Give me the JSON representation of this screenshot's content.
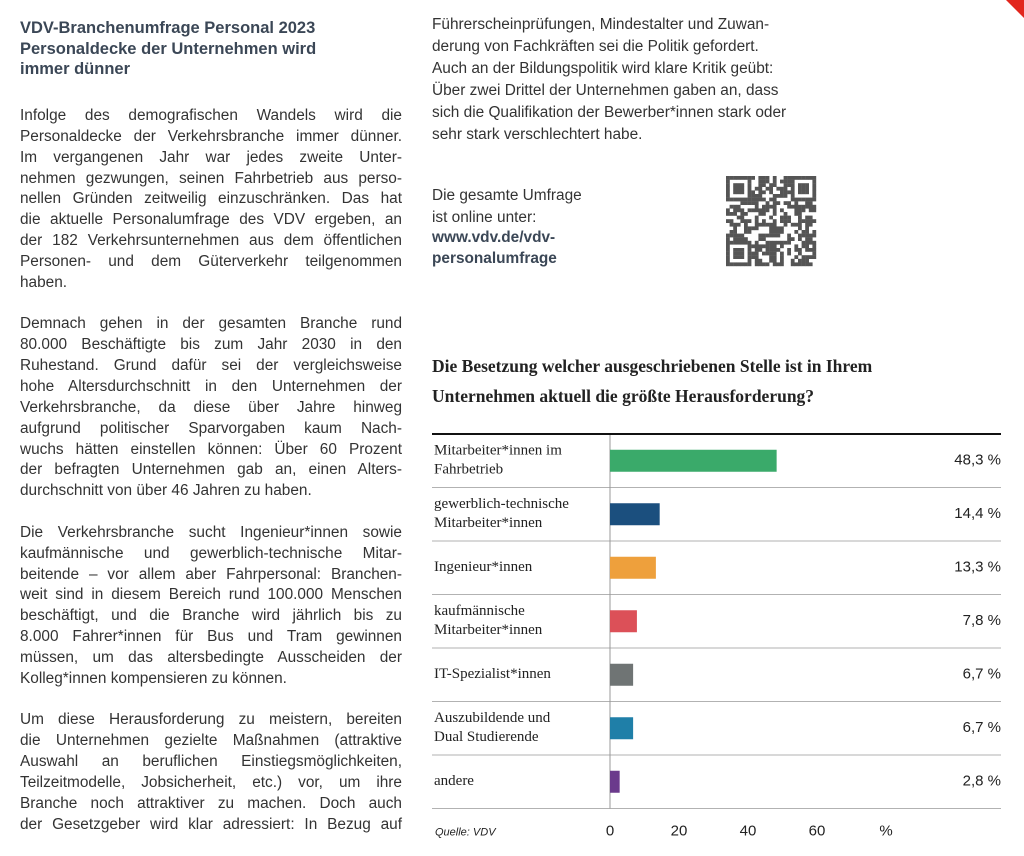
{
  "article": {
    "title": [
      "VDV-Branchenumfrage Personal 2023",
      "Personaldecke der Unternehmen wird",
      "immer dünner"
    ],
    "left_paragraphs": [
      [
        "Infolge des demografischen Wandels wird die",
        "Personaldecke der Verkehrsbranche immer dünner.",
        "Im vergangenen Jahr war jedes zweite Unter-",
        "nehmen gezwungen, seinen Fahrbetrieb aus perso-",
        "nellen Gründen zeitweilig einzuschränken. Das hat",
        "die aktuelle Personalumfrage des VDV ergeben, an",
        "der 182 Verkehrsunternehmen aus dem öffentlichen",
        "Personen- und dem Güterverkehr teilgenommen",
        "haben."
      ],
      [
        "Demnach gehen in der gesamten Branche rund",
        "80.000 Beschäftigte bis zum Jahr 2030 in den",
        "Ruhestand. Grund dafür sei der vergleichsweise",
        "hohe Altersdurchschnitt in den Unternehmen der",
        "Verkehrsbranche, da diese über Jahre hinweg",
        "aufgrund politischer Sparvorgaben kaum Nach-",
        "wuchs hätten einstellen können: Über 60 Prozent",
        "der befragten Unternehmen gab an, einen Alters-",
        "durchschnitt von über 46 Jahren zu haben."
      ],
      [
        "Die Verkehrsbranche sucht Ingenieur*innen sowie",
        "kaufmännische und gewerblich-technische Mitar-",
        "beitende – vor allem aber Fahrpersonal: Branchen-",
        "weit sind in diesem Bereich rund 100.000 Menschen",
        "beschäftigt, und die Branche wird jährlich bis zu",
        "8.000 Fahrer*innen für Bus und Tram gewinnen",
        "müssen, um das altersbedingte Ausscheiden der",
        "Kolleg*innen kompensieren zu können."
      ],
      [
        "Um diese Herausforderung zu meistern, bereiten",
        "die Unternehmen gezielte Maßnahmen (attraktive",
        "Auswahl an beruflichen Einstiegsmöglichkeiten,",
        "Teilzeitmodelle, Jobsicherheit, etc.) vor, um ihre",
        "Branche noch attraktiver zu machen. Doch auch",
        "der Gesetzgeber wird klar adressiert: In Bezug auf"
      ]
    ],
    "right_paragraph": [
      "Führerscheinprüfungen, Mindestalter und Zuwan-",
      "derung von Fachkräften sei die Politik gefordert.",
      "Auch an der Bildungspolitik wird klare Kritik geübt:",
      "Über zwei Drittel der Unternehmen gaben an, dass",
      "sich die Qualifikation der Bewerber*innen stark oder",
      "sehr stark verschlechtert habe."
    ],
    "online_note": [
      "Die gesamte Umfrage",
      "ist online unter:"
    ],
    "url": [
      "www.vdv.de/vdv-",
      "personalumfrage"
    ]
  },
  "chart_data": {
    "type": "hbar",
    "title": "Die Besetzung welcher ausgeschriebenen Stelle ist in Ihrem Unternehmen aktuell die größte Herausforderung?",
    "source": "Quelle: VDV",
    "categories": [
      [
        "Mitarbeiter*innen im",
        "Fahrbetrieb"
      ],
      [
        "gewerblich-technische",
        "Mitarbeiter*innen"
      ],
      [
        "Ingenieur*innen"
      ],
      [
        "kaufmännische",
        "Mitarbeiter*innen"
      ],
      [
        "IT-Spezialist*innen"
      ],
      [
        "Auszubildende und",
        "Dual Studierende"
      ],
      [
        "andere"
      ]
    ],
    "values": [
      48.3,
      14.4,
      13.3,
      7.8,
      6.7,
      6.7,
      2.8
    ],
    "value_labels": [
      "48,3 %",
      "14,4 %",
      "13,3 %",
      "7,8 %",
      "6,7 %",
      "6,7 %",
      "2,8 %"
    ],
    "colors": [
      "#3aaa6a",
      "#1b4f7e",
      "#eea03c",
      "#dc5058",
      "#6f7474",
      "#1f7fa8",
      "#6b3a8c"
    ],
    "xlim": [
      0,
      80
    ],
    "xticks": [
      0,
      20,
      40,
      60,
      {
        "value": 80,
        "label": "%"
      }
    ]
  }
}
